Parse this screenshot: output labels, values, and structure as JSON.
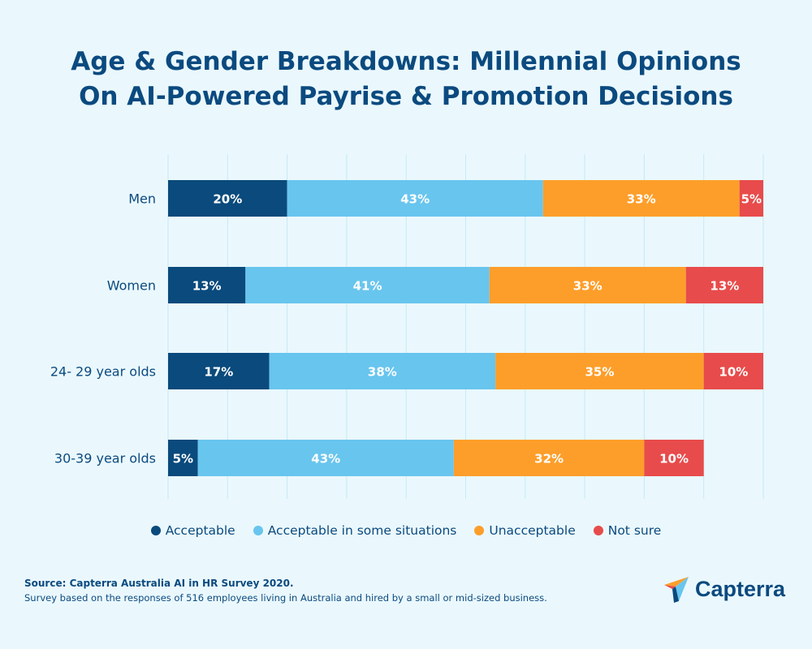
{
  "title_line1": "Age & Gender Breakdowns: Millennial Opinions",
  "title_line2": "On AI-Powered Payrise & Promotion Decisions",
  "chart_data": {
    "type": "bar",
    "orientation": "horizontal",
    "stacked": true,
    "categories": [
      "Men",
      "Women",
      "24- 29 year olds",
      "30-39 year olds"
    ],
    "series": [
      {
        "name": "Acceptable",
        "color": "#0a4a7c",
        "values": [
          20,
          13,
          17,
          5
        ]
      },
      {
        "name": "Acceptable in some situations",
        "color": "#68c5ee",
        "values": [
          43,
          41,
          38,
          43
        ]
      },
      {
        "name": "Unacceptable",
        "color": "#fd9e2a",
        "values": [
          33,
          33,
          35,
          32
        ]
      },
      {
        "name": "Not sure",
        "color": "#e84b4b",
        "values": [
          5,
          13,
          10,
          10
        ]
      }
    ],
    "value_suffix": "%",
    "xlim": [
      0,
      100
    ],
    "grid": true,
    "legend_position": "bottom"
  },
  "source": {
    "label": "Source: Capterra Australia AI in HR Survey 2020.",
    "note": "Survey based on the responses of 516 employees living in Australia and hired by a small or mid-sized business."
  },
  "logo": {
    "text": "Capterra"
  }
}
